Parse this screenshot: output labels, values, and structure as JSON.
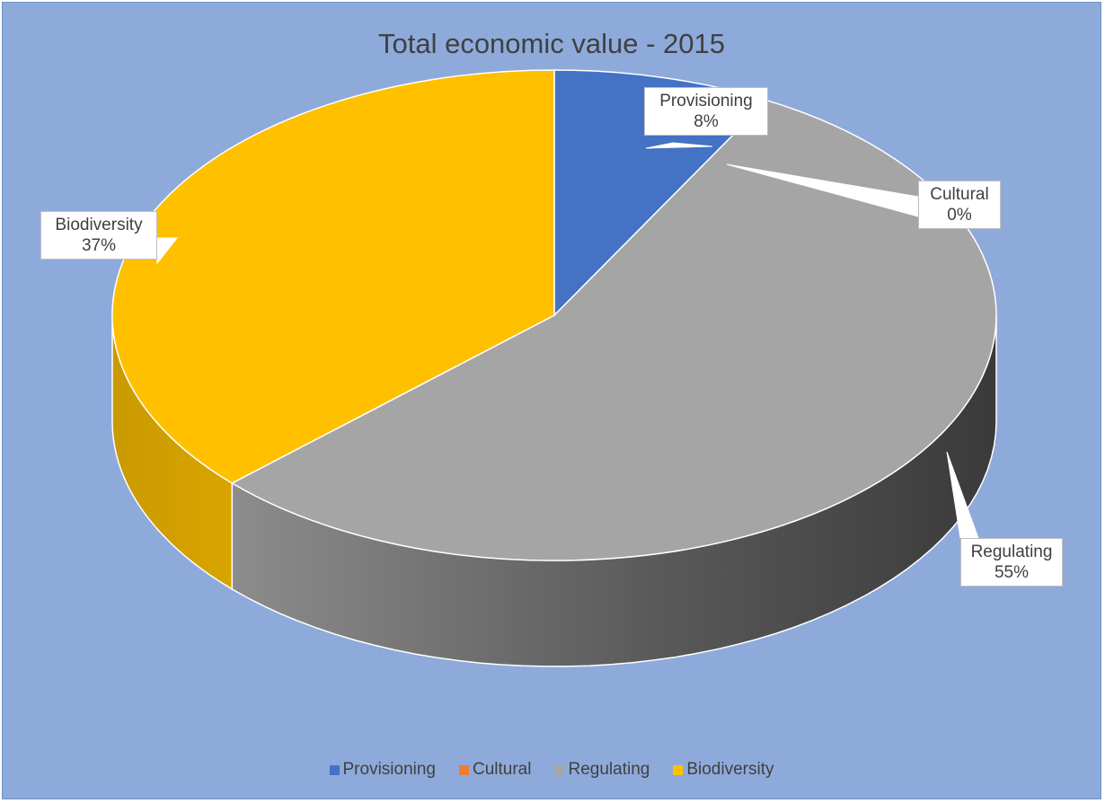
{
  "chart_data": {
    "type": "pie",
    "title": "Total economic value - 2015",
    "slices": [
      {
        "name": "Provisioning",
        "value": 8,
        "label": "8%",
        "color": "#4472c4"
      },
      {
        "name": "Cultural",
        "value": 0,
        "label": "0%",
        "color": "#ed7d31"
      },
      {
        "name": "Regulating",
        "value": 55,
        "label": "55%",
        "color": "#a5a5a5"
      },
      {
        "name": "Biodiversity",
        "value": 37,
        "label": "37%",
        "color": "#ffc000"
      }
    ],
    "legend_position": "bottom",
    "three_d": true
  }
}
